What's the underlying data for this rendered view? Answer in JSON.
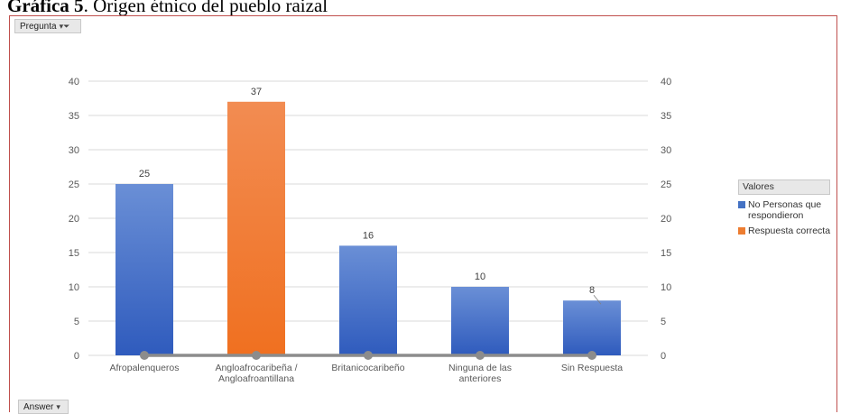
{
  "caption": {
    "bold": "Gráfica 5",
    "rest": ". Origen étnico del pueblo raizal"
  },
  "field_buttons": {
    "top": "Pregunta",
    "bottom": "Answer"
  },
  "icons": {
    "filter": "filter-icon",
    "dropdown": "dropdown-arrow-icon"
  },
  "legend": {
    "title": "Valores",
    "items": [
      {
        "label": "No Personas que respondieron",
        "color": "#4472c4"
      },
      {
        "label": "Respuesta correcta",
        "color": "#ed7d31"
      }
    ]
  },
  "chart_data": {
    "type": "bar",
    "categories": [
      "Afropalenqueros",
      "Angloafrocaribeña / Angloafroantillana",
      "Britanicocaribeño",
      "Ninguna de las anteriores",
      "Sin Respuesta"
    ],
    "category_lines": [
      [
        "Afropalenqueros"
      ],
      [
        "Angloafrocaribeña /",
        "Angloafroantillana"
      ],
      [
        "Britanicocaribeño"
      ],
      [
        "Ninguna de las",
        "anteriores"
      ],
      [
        "Sin Respuesta"
      ]
    ],
    "series": [
      {
        "name": "No Personas que respondieron",
        "values": [
          25,
          0,
          16,
          10,
          8
        ],
        "color": "#4472c4"
      },
      {
        "name": "Respuesta correcta",
        "values": [
          0,
          37,
          0,
          0,
          0
        ],
        "color": "#ed7d31"
      }
    ],
    "data_labels": [
      25,
      37,
      16,
      10,
      8
    ],
    "ylim": [
      0,
      40
    ],
    "yticks": [
      0,
      5,
      10,
      15,
      20,
      25,
      30,
      35,
      40
    ],
    "secondary_axis": {
      "ylim": [
        0,
        40
      ],
      "yticks": [
        0,
        5,
        10,
        15,
        20,
        25,
        30,
        35,
        40
      ]
    },
    "line_overlay_values": [
      0,
      0,
      0,
      0,
      0
    ],
    "grid": true,
    "legend_position": "right"
  }
}
